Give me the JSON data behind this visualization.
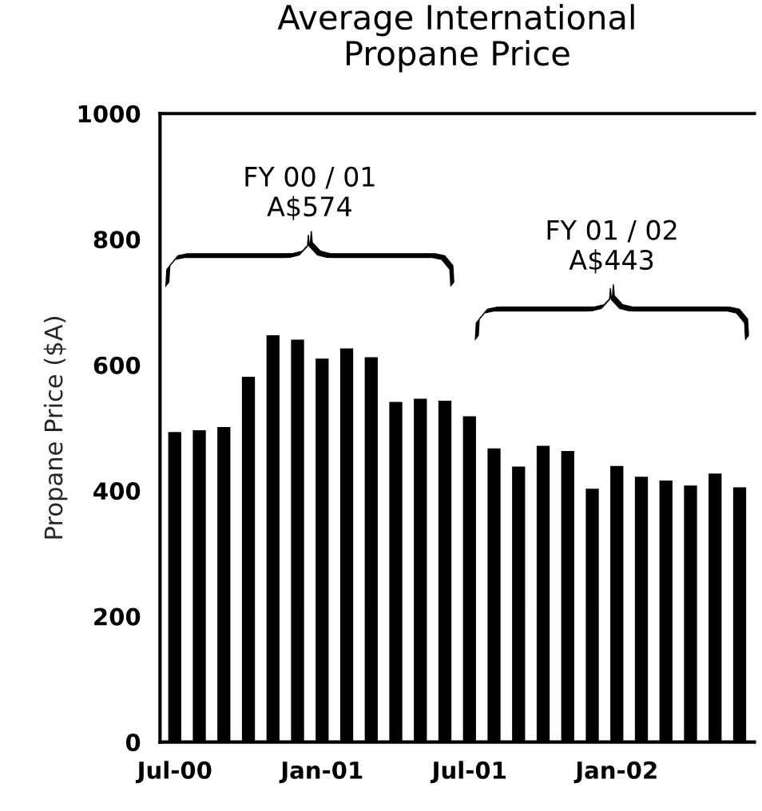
{
  "chart_data": {
    "type": "bar",
    "title": "Average International\nPropane Price",
    "ylabel": "Propane Price ($A)",
    "categories": [
      "Jul-00",
      null,
      null,
      null,
      null,
      null,
      "Jan-01",
      null,
      null,
      null,
      null,
      null,
      "Jul-01",
      null,
      null,
      null,
      null,
      null,
      "Jan-02",
      null,
      null,
      null,
      null,
      null
    ],
    "values": [
      495,
      498,
      503,
      583,
      649,
      642,
      612,
      628,
      614,
      543,
      548,
      545,
      520,
      469,
      440,
      473,
      465,
      405,
      441,
      424,
      418,
      410,
      429,
      407
    ],
    "color": "#000000",
    "ylim": [
      0,
      1000
    ],
    "yticks": [
      0,
      200,
      400,
      600,
      800,
      1000
    ],
    "grid": false,
    "annotations": [
      "FY 00 / 01\nA$574",
      "FY 01 / 02\nA$443"
    ]
  }
}
